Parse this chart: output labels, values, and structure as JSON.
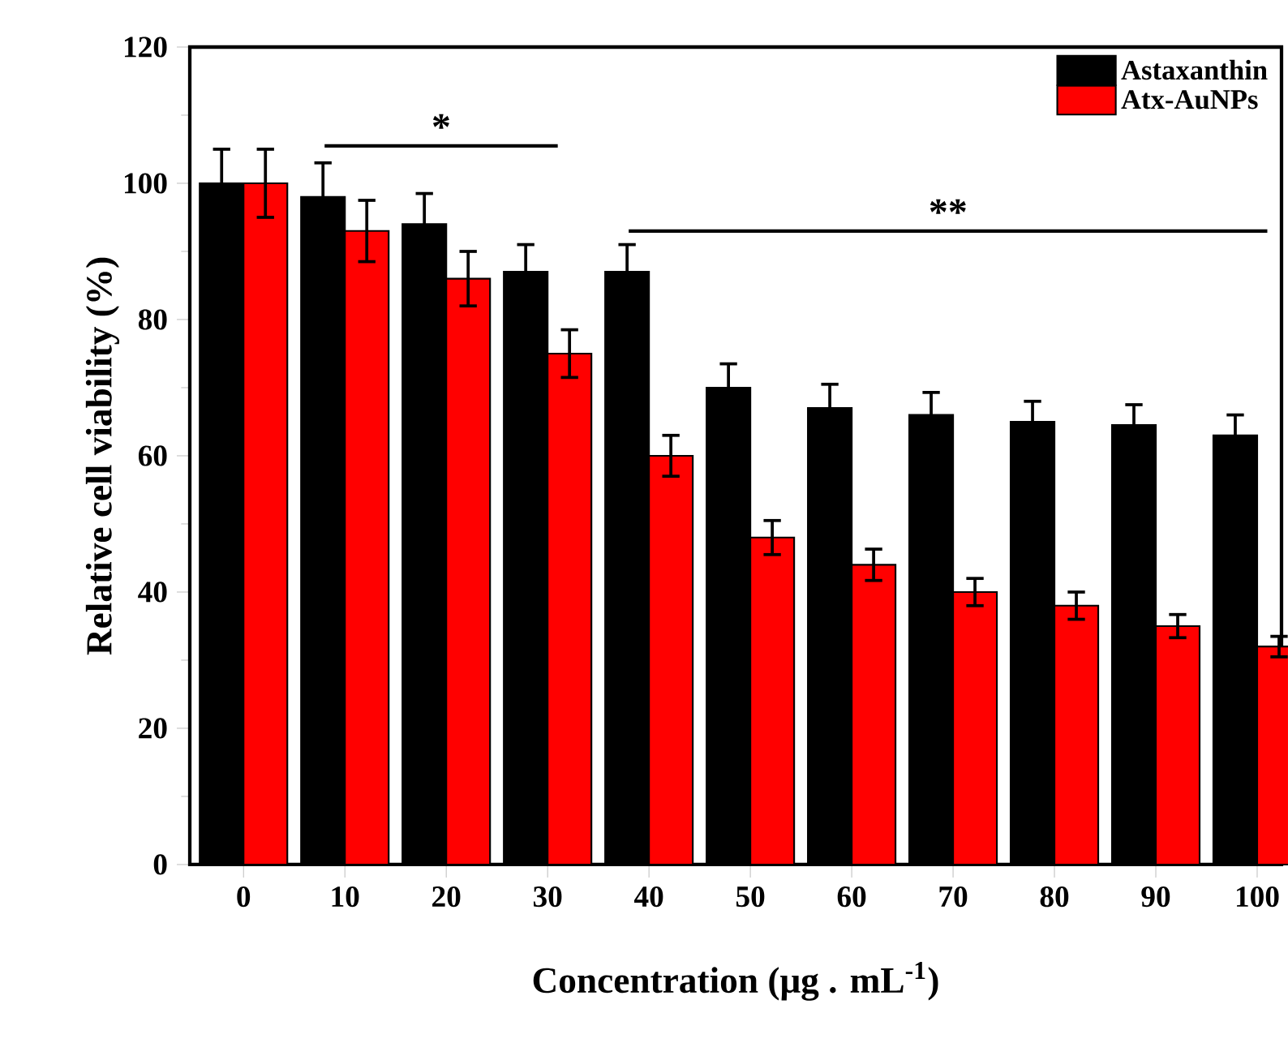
{
  "chart_data": {
    "type": "bar",
    "xlabel": "Concentration (μg . mL$^{-1}$)",
    "ylabel": "Relative cell viability (%)",
    "categories": [
      "0",
      "10",
      "20",
      "30",
      "40",
      "50",
      "60",
      "70",
      "80",
      "90",
      "100"
    ],
    "series": [
      {
        "name": "Astaxanthin",
        "color": "#000000",
        "values": [
          100,
          98,
          94,
          87,
          87,
          70,
          67,
          66,
          65,
          64.5,
          63
        ],
        "errors": [
          5,
          5,
          4.5,
          4,
          4,
          3.5,
          3.5,
          3.3,
          3,
          3,
          3
        ]
      },
      {
        "name": "Atx-AuNPs",
        "color": "#ff0000",
        "values": [
          100,
          93,
          86,
          75,
          60,
          48,
          44,
          40,
          38,
          35,
          32
        ],
        "errors": [
          5,
          4.5,
          4,
          3.5,
          3,
          2.5,
          2.3,
          2,
          2,
          1.7,
          1.5
        ]
      }
    ],
    "ylim": [
      0,
      120
    ],
    "yticks": [
      0,
      20,
      40,
      60,
      80,
      100,
      120
    ],
    "legend": "top right",
    "annotations": [
      "*",
      "**"
    ]
  }
}
